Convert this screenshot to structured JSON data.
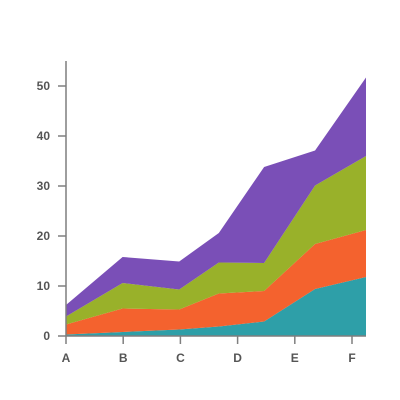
{
  "chart_data": {
    "type": "area",
    "stacked": true,
    "title": "",
    "xlabel": "",
    "ylabel": "",
    "categories": [
      "A",
      "B",
      "C",
      "D",
      "E",
      "F"
    ],
    "x": [
      0,
      1,
      2,
      2.7,
      3.5,
      4.4,
      5.3
    ],
    "x_range": [
      0,
      5.3
    ],
    "ylim": [
      0,
      55
    ],
    "y_ticks": [
      0,
      10,
      20,
      30,
      40,
      50
    ],
    "grid": false,
    "legend": "none",
    "series": [
      {
        "color": "#2e9fa8",
        "values": [
          0.3,
          0.8,
          1.3,
          1.9,
          2.9,
          9.4,
          11.8
        ]
      },
      {
        "color": "#f4622e",
        "values": [
          2.0,
          4.7,
          4.0,
          6.6,
          6.1,
          9.0,
          9.4
        ]
      },
      {
        "color": "#99b12a",
        "values": [
          1.6,
          5.1,
          4.0,
          6.2,
          5.6,
          11.7,
          14.8
        ]
      },
      {
        "color": "#7a4fb7",
        "values": [
          2.3,
          5.2,
          5.6,
          5.9,
          19.2,
          7.0,
          15.7
        ]
      }
    ]
  }
}
